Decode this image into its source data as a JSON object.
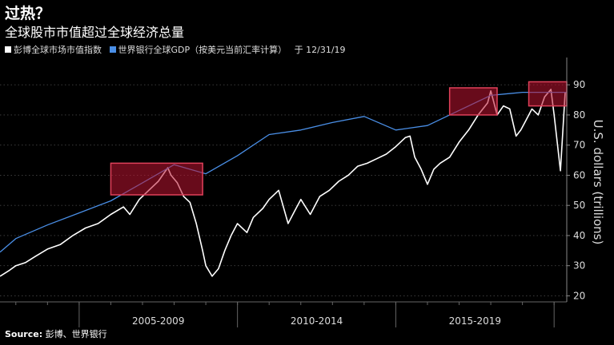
{
  "header": {
    "title": "过热？",
    "subtitle": "全球股市市值超过全球经济总量"
  },
  "legend": {
    "items": [
      {
        "label": "彭博全球市场市值指数",
        "color": "#ffffff"
      },
      {
        "label": "世界银行全球GDP（按美元当前汇率计算）",
        "color": "#4a8fe7"
      }
    ],
    "date_note": "于 12/31/19"
  },
  "footer": {
    "source_label": "Source:",
    "source_text": "彭博、世界银行"
  },
  "chart_data": {
    "type": "line",
    "title": "过热？",
    "subtitle": "全球股市市值超过全球经济总量",
    "ylabel": "U.S. dollars (trillions)",
    "ylim": [
      18,
      98
    ],
    "yticks": [
      20,
      30,
      40,
      50,
      60,
      70,
      80,
      90
    ],
    "xlim": [
      2002.5,
      2020.4
    ],
    "x_groups": [
      {
        "label": "2005-2009",
        "start": 2005,
        "end": 2010
      },
      {
        "label": "2010-2014",
        "start": 2010,
        "end": 2015
      },
      {
        "label": "2015-2019",
        "start": 2015,
        "end": 2020
      }
    ],
    "grid": true,
    "series": [
      {
        "name": "彭博全球市场市值指数",
        "color": "#ffffff",
        "x": [
          2002.5,
          2002.8,
          2003.0,
          2003.3,
          2003.6,
          2004.0,
          2004.4,
          2004.8,
          2005.2,
          2005.6,
          2006.0,
          2006.4,
          2006.6,
          2006.9,
          2007.2,
          2007.5,
          2007.8,
          2007.9,
          2008.1,
          2008.3,
          2008.5,
          2008.7,
          2008.9,
          2009.0,
          2009.2,
          2009.4,
          2009.6,
          2009.8,
          2010.0,
          2010.3,
          2010.5,
          2010.8,
          2011.0,
          2011.3,
          2011.6,
          2011.8,
          2012.0,
          2012.3,
          2012.6,
          2012.9,
          2013.2,
          2013.5,
          2013.8,
          2014.1,
          2014.4,
          2014.7,
          2015.0,
          2015.3,
          2015.45,
          2015.6,
          2015.8,
          2016.0,
          2016.2,
          2016.4,
          2016.7,
          2017.0,
          2017.3,
          2017.6,
          2017.9,
          2018.0,
          2018.2,
          2018.4,
          2018.6,
          2018.8,
          2018.95,
          2019.1,
          2019.3,
          2019.5,
          2019.7,
          2019.9,
          2020.0,
          2020.2,
          2020.35
        ],
        "y": [
          26.5,
          28.5,
          30.0,
          31.0,
          33.0,
          35.5,
          37.0,
          40.0,
          42.5,
          44.0,
          47.0,
          49.5,
          47.0,
          52.0,
          55.0,
          58.0,
          62.5,
          60.0,
          57.5,
          53.0,
          51.0,
          44.0,
          35.0,
          30.0,
          26.5,
          29.0,
          35.0,
          40.0,
          44.0,
          41.0,
          46.0,
          49.0,
          52.0,
          55.0,
          44.0,
          48.0,
          52.0,
          47.0,
          53.0,
          55.0,
          58.0,
          60.0,
          63.0,
          64.0,
          65.5,
          67.0,
          69.5,
          72.5,
          73.0,
          66.0,
          62.0,
          57.0,
          62.0,
          64.0,
          66.0,
          71.0,
          75.0,
          80.0,
          84.0,
          88.0,
          80.0,
          83.0,
          82.0,
          73.0,
          75.0,
          78.0,
          82.0,
          80.0,
          86.0,
          88.5,
          80.0,
          61.5,
          87.5
        ]
      },
      {
        "name": "世界银行全球GDP（按美元当前汇率计算）",
        "color": "#4a8fe7",
        "x": [
          2002.5,
          2003.0,
          2004.0,
          2005.0,
          2006.0,
          2007.0,
          2008.0,
          2009.0,
          2010.0,
          2011.0,
          2012.0,
          2013.0,
          2014.0,
          2015.0,
          2016.0,
          2017.0,
          2018.0,
          2019.0,
          2020.4
        ],
        "y": [
          34.5,
          39.0,
          43.5,
          47.5,
          51.5,
          57.5,
          63.5,
          60.5,
          66.5,
          73.5,
          75.0,
          77.5,
          79.5,
          75.0,
          76.5,
          81.5,
          86.5,
          87.5,
          87.5
        ]
      }
    ],
    "highlights": [
      {
        "x0": 2006.0,
        "x1": 2008.9,
        "y0": 53.5,
        "y1": 64.0
      },
      {
        "x0": 2016.7,
        "x1": 2018.2,
        "y0": 80.0,
        "y1": 89.0
      },
      {
        "x0": 2019.2,
        "x1": 2020.4,
        "y0": 83.0,
        "y1": 91.0
      }
    ]
  }
}
